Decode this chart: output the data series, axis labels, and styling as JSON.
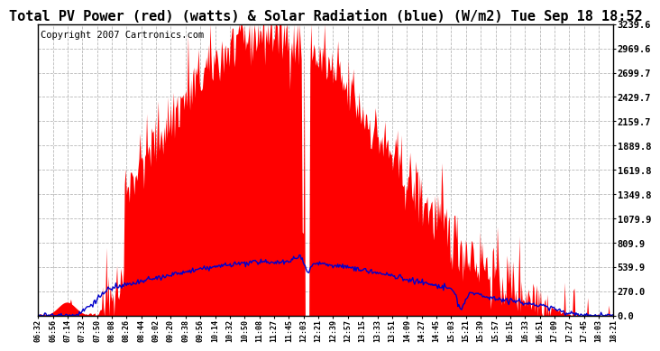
{
  "title": "Total PV Power (red) (watts) & Solar Radiation (blue) (W/m2) Tue Sep 18 18:52",
  "copyright": "Copyright 2007 Cartronics.com",
  "yticks": [
    0.0,
    270.0,
    539.9,
    809.9,
    1079.9,
    1349.8,
    1619.8,
    1889.8,
    2159.7,
    2429.7,
    2699.7,
    2969.6,
    3239.6
  ],
  "ymax": 3239.6,
  "xtick_labels": [
    "06:32",
    "06:56",
    "07:14",
    "07:32",
    "07:50",
    "08:08",
    "08:26",
    "08:44",
    "09:02",
    "09:20",
    "09:38",
    "09:56",
    "10:14",
    "10:32",
    "10:50",
    "11:08",
    "11:27",
    "11:45",
    "12:03",
    "12:21",
    "12:39",
    "12:57",
    "13:15",
    "13:33",
    "13:51",
    "14:09",
    "14:27",
    "14:45",
    "15:03",
    "15:21",
    "15:39",
    "15:57",
    "16:15",
    "16:33",
    "16:51",
    "17:09",
    "17:27",
    "17:45",
    "18:03",
    "18:21"
  ],
  "background_color": "#ffffff",
  "plot_bg_color": "#ffffff",
  "grid_color": "#b0b0b0",
  "red_color": "#ff0000",
  "blue_color": "#0000cc",
  "title_fontsize": 11,
  "copyright_fontsize": 7.5,
  "n_xticks": 40
}
